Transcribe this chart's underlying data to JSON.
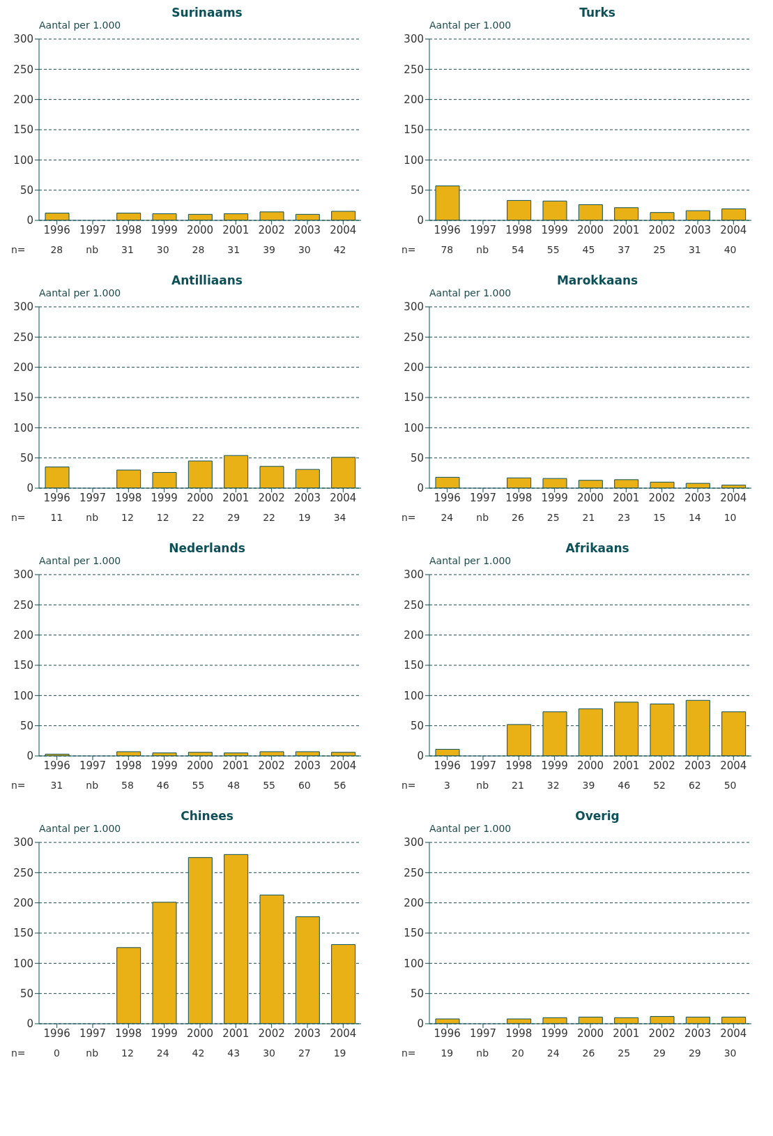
{
  "chart_data": [
    {
      "type": "bar",
      "title": "Surinaams",
      "ylabel": "Aantal per 1.000",
      "categories": [
        "1996",
        "1997",
        "1998",
        "1999",
        "2000",
        "2001",
        "2002",
        "2003",
        "2004"
      ],
      "values": [
        12,
        null,
        12,
        11,
        10,
        11,
        14,
        10,
        15
      ],
      "color": "#e9b116",
      "ylim": [
        0,
        300
      ],
      "yticks": [
        0,
        50,
        100,
        150,
        200,
        250,
        300
      ],
      "grid": "y",
      "annotations": [
        "n=",
        "28",
        "nb",
        "31",
        "30",
        "28",
        "31",
        "39",
        "30",
        "42"
      ]
    },
    {
      "type": "bar",
      "title": "Turks",
      "ylabel": "Aantal per 1.000",
      "categories": [
        "1996",
        "1997",
        "1998",
        "1999",
        "2000",
        "2001",
        "2002",
        "2003",
        "2004"
      ],
      "values": [
        57,
        null,
        33,
        32,
        26,
        21,
        13,
        16,
        19
      ],
      "color": "#e9b116",
      "ylim": [
        0,
        300
      ],
      "yticks": [
        0,
        50,
        100,
        150,
        200,
        250,
        300
      ],
      "grid": "y",
      "annotations": [
        "n=",
        "78",
        "nb",
        "54",
        "55",
        "45",
        "37",
        "25",
        "31",
        "40"
      ]
    },
    {
      "type": "bar",
      "title": "Antilliaans",
      "ylabel": "Aantal per 1.000",
      "categories": [
        "1996",
        "1997",
        "1998",
        "1999",
        "2000",
        "2001",
        "2002",
        "2003",
        "2004"
      ],
      "values": [
        35,
        null,
        30,
        26,
        45,
        54,
        36,
        31,
        51
      ],
      "color": "#e9b116",
      "ylim": [
        0,
        300
      ],
      "yticks": [
        0,
        50,
        100,
        150,
        200,
        250,
        300
      ],
      "grid": "y",
      "annotations": [
        "n=",
        "11",
        "nb",
        "12",
        "12",
        "22",
        "29",
        "22",
        "19",
        "34"
      ]
    },
    {
      "type": "bar",
      "title": "Marokkaans",
      "ylabel": "Aantal per 1.000",
      "categories": [
        "1996",
        "1997",
        "1998",
        "1999",
        "2000",
        "2001",
        "2002",
        "2003",
        "2004"
      ],
      "values": [
        18,
        null,
        17,
        16,
        13,
        14,
        10,
        8,
        5
      ],
      "color": "#e9b116",
      "ylim": [
        0,
        300
      ],
      "yticks": [
        0,
        50,
        100,
        150,
        200,
        250,
        300
      ],
      "grid": "y",
      "annotations": [
        "n=",
        "24",
        "nb",
        "26",
        "25",
        "21",
        "23",
        "15",
        "14",
        "10"
      ]
    },
    {
      "type": "bar",
      "title": "Nederlands",
      "ylabel": "Aantal per 1.000",
      "categories": [
        "1996",
        "1997",
        "1998",
        "1999",
        "2000",
        "2001",
        "2002",
        "2003",
        "2004"
      ],
      "values": [
        3,
        null,
        7,
        5,
        6,
        5,
        7,
        7,
        6
      ],
      "color": "#e9b116",
      "ylim": [
        0,
        300
      ],
      "yticks": [
        0,
        50,
        100,
        150,
        200,
        250,
        300
      ],
      "grid": "y",
      "annotations": [
        "n=",
        "31",
        "nb",
        "58",
        "46",
        "55",
        "48",
        "55",
        "60",
        "56"
      ]
    },
    {
      "type": "bar",
      "title": "Afrikaans",
      "ylabel": "Aantal per 1.000",
      "categories": [
        "1996",
        "1997",
        "1998",
        "1999",
        "2000",
        "2001",
        "2002",
        "2003",
        "2004"
      ],
      "values": [
        11,
        null,
        52,
        73,
        78,
        89,
        86,
        92,
        73
      ],
      "color": "#e9b116",
      "ylim": [
        0,
        300
      ],
      "yticks": [
        0,
        50,
        100,
        150,
        200,
        250,
        300
      ],
      "grid": "y",
      "annotations": [
        "n=",
        "3",
        "nb",
        "21",
        "32",
        "39",
        "46",
        "52",
        "62",
        "50"
      ]
    },
    {
      "type": "bar",
      "title": "Chinees",
      "ylabel": "Aantal per 1.000",
      "categories": [
        "1996",
        "1997",
        "1998",
        "1999",
        "2000",
        "2001",
        "2002",
        "2003",
        "2004"
      ],
      "values": [
        null,
        null,
        126,
        201,
        275,
        280,
        213,
        177,
        131
      ],
      "color": "#e9b116",
      "ylim": [
        0,
        300
      ],
      "yticks": [
        0,
        50,
        100,
        150,
        200,
        250,
        300
      ],
      "grid": "y",
      "annotations": [
        "n=",
        "0",
        "nb",
        "12",
        "24",
        "42",
        "43",
        "30",
        "27",
        "19"
      ]
    },
    {
      "type": "bar",
      "title": "Overig",
      "ylabel": "Aantal per 1.000",
      "categories": [
        "1996",
        "1997",
        "1998",
        "1999",
        "2000",
        "2001",
        "2002",
        "2003",
        "2004"
      ],
      "values": [
        8,
        null,
        8,
        10,
        11,
        10,
        12,
        11,
        11
      ],
      "color": "#e9b116",
      "ylim": [
        0,
        300
      ],
      "yticks": [
        0,
        50,
        100,
        150,
        200,
        250,
        300
      ],
      "grid": "y",
      "annotations": [
        "n=",
        "19",
        "nb",
        "20",
        "24",
        "26",
        "25",
        "29",
        "29",
        "30"
      ]
    }
  ]
}
